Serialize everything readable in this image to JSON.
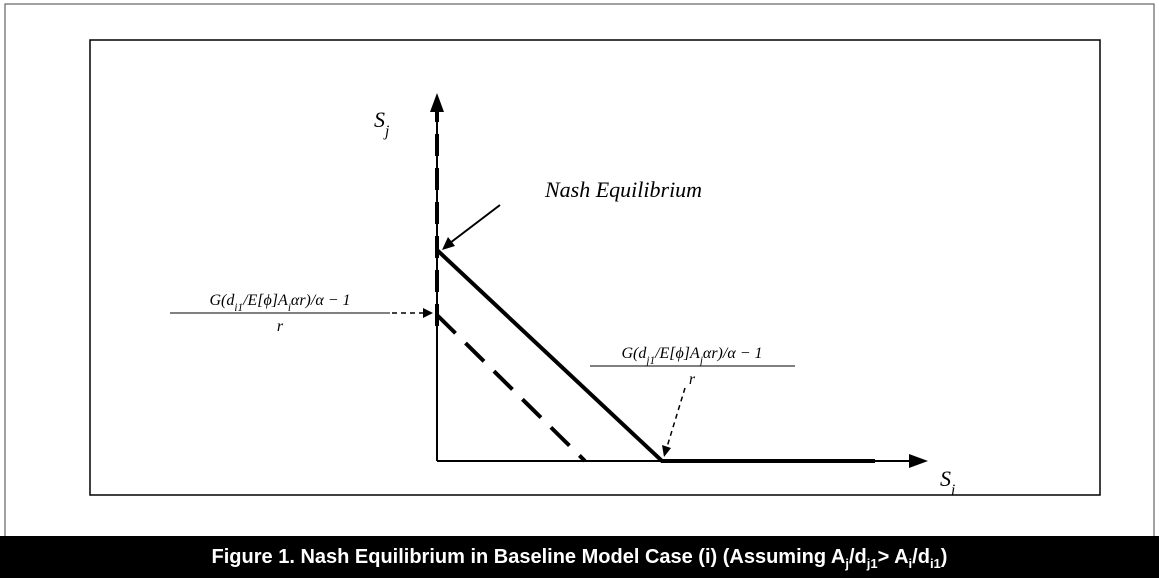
{
  "axes": {
    "y_label": [
      {
        "t": "S"
      },
      {
        "t": "j",
        "sub": true
      }
    ],
    "x_label": [
      {
        "t": "S"
      },
      {
        "t": "i",
        "sub": true
      }
    ]
  },
  "annotation": "Nash Equilibrium",
  "left_label": {
    "numerator": [
      {
        "t": "G(d"
      },
      {
        "t": "i1",
        "sub": true
      },
      {
        "t": "/E[ϕ]A"
      },
      {
        "t": "i",
        "sub": true
      },
      {
        "t": "αr)/α − 1"
      }
    ],
    "denominator": "r"
  },
  "right_label": {
    "numerator": [
      {
        "t": "G(d"
      },
      {
        "t": "j1",
        "sub": true
      },
      {
        "t": "/E[ϕ]A"
      },
      {
        "t": "j",
        "sub": true
      },
      {
        "t": "αr)/α − 1"
      }
    ],
    "denominator": "r"
  },
  "caption": [
    {
      "t": "Figure 1. Nash Equilibrium in Baseline Model Case (i) (Assuming A"
    },
    {
      "t": "j",
      "sub": true
    },
    {
      "t": "/d"
    },
    {
      "t": "j1",
      "sub": true
    },
    {
      "t": "> A"
    },
    {
      "t": "i",
      "sub": true
    },
    {
      "t": "/d"
    },
    {
      "t": "i1",
      "sub": true
    },
    {
      "t": ")"
    }
  ]
}
